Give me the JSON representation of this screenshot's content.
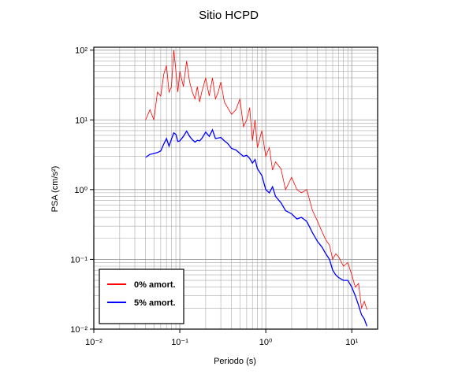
{
  "chart_data": {
    "type": "line",
    "title": "Sitio HCPD",
    "x_label": "Periodo (s)",
    "y_label": "PSA (cm/s²)",
    "xscale": "log",
    "yscale": "log",
    "grid": true,
    "legend": "lower left",
    "xlim": [
      0.01,
      20
    ],
    "ylim": [
      0.01,
      110
    ],
    "xticks": [
      {
        "value": 0.01,
        "label": "10⁻²"
      },
      {
        "value": 0.1,
        "label": "10⁻¹"
      },
      {
        "value": 1,
        "label": "10⁰"
      },
      {
        "value": 10,
        "label": "10¹"
      }
    ],
    "yticks": [
      {
        "value": 0.01,
        "label": "10⁻²"
      },
      {
        "value": 0.1,
        "label": "10⁻¹"
      },
      {
        "value": 1,
        "label": "10⁰"
      },
      {
        "value": 10,
        "label": "10¹"
      },
      {
        "value": 100,
        "label": "10²"
      }
    ],
    "x": [
      0.04,
      0.045,
      0.05,
      0.055,
      0.06,
      0.065,
      0.07,
      0.075,
      0.08,
      0.085,
      0.09,
      0.095,
      0.1,
      0.11,
      0.12,
      0.13,
      0.14,
      0.15,
      0.16,
      0.17,
      0.18,
      0.2,
      0.22,
      0.24,
      0.26,
      0.28,
      0.3,
      0.33,
      0.36,
      0.4,
      0.45,
      0.5,
      0.55,
      0.6,
      0.65,
      0.7,
      0.75,
      0.8,
      0.9,
      1.0,
      1.1,
      1.2,
      1.3,
      1.5,
      1.7,
      2.0,
      2.3,
      2.6,
      3.0,
      3.5,
      4.0,
      4.5,
      5.0,
      5.5,
      6.0,
      6.5,
      7.0,
      8.0,
      9.0,
      10,
      11,
      12,
      13,
      14,
      15
    ],
    "series": [
      {
        "name": "0% amort.",
        "color": "#ff0000",
        "values": [
          10,
          14,
          10,
          25,
          22,
          45,
          60,
          25,
          30,
          100,
          50,
          25,
          50,
          30,
          70,
          35,
          25,
          20,
          30,
          18,
          25,
          40,
          22,
          40,
          20,
          25,
          35,
          18,
          15,
          12,
          14,
          20,
          8,
          10,
          15,
          5,
          10,
          4,
          7,
          3,
          4,
          1.9,
          2.5,
          2.0,
          1.0,
          1.5,
          1.0,
          0.9,
          1.0,
          0.5,
          0.35,
          0.25,
          0.19,
          0.16,
          0.1,
          0.12,
          0.11,
          0.08,
          0.09,
          0.06,
          0.04,
          0.045,
          0.02,
          0.025,
          0.019
        ]
      },
      {
        "name": "5% amort.",
        "color": "#0000ff",
        "values": [
          2.9,
          3.2,
          3.3,
          3.4,
          3.6,
          4.5,
          5.4,
          4.2,
          5.3,
          6.5,
          6.2,
          4.9,
          5.0,
          5.8,
          6.9,
          5.8,
          5.2,
          4.8,
          5.1,
          5.0,
          5.4,
          6.7,
          5.8,
          7.2,
          5.4,
          5.5,
          5.6,
          5.0,
          4.6,
          3.9,
          3.7,
          3.3,
          3.0,
          3.1,
          2.8,
          2.4,
          2.7,
          2.0,
          1.6,
          1.0,
          0.9,
          1.1,
          0.8,
          0.65,
          0.5,
          0.45,
          0.38,
          0.4,
          0.35,
          0.24,
          0.18,
          0.15,
          0.12,
          0.1,
          0.07,
          0.06,
          0.055,
          0.05,
          0.05,
          0.04,
          0.03,
          0.022,
          0.016,
          0.014,
          0.011
        ]
      }
    ]
  }
}
